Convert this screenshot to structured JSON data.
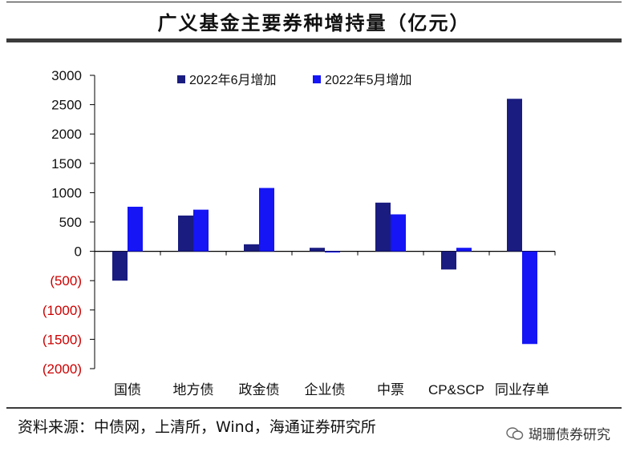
{
  "title": "广义基金主要券种增持量（亿元）",
  "source": "资料来源：中债网，上清所，Wind，海通证券研究所",
  "watermark": "瑚珊债券研究",
  "colors": {
    "series1": "#1a1c80",
    "series2": "#1515f5",
    "negative_tick": "#cc0000",
    "tick": "#111111"
  },
  "chart_data": {
    "type": "bar",
    "title": "广义基金主要券种增持量（亿元）",
    "categories": [
      "国债",
      "地方债",
      "政金债",
      "企业债",
      "中票",
      "CP&SCP",
      "同业存单"
    ],
    "series": [
      {
        "name": "2022年6月增加",
        "values": [
          -500,
          610,
          120,
          60,
          830,
          -310,
          2600
        ]
      },
      {
        "name": "2022年5月增加",
        "values": [
          760,
          710,
          1080,
          -20,
          630,
          60,
          -1580
        ]
      }
    ],
    "ylim": [
      -2000,
      3000
    ],
    "yticks": [
      3000,
      2500,
      2000,
      1500,
      1000,
      500,
      0,
      -500,
      -1000,
      -1500,
      -2000
    ],
    "ytick_labels": [
      "3000",
      "2500",
      "2000",
      "1500",
      "1000",
      "500",
      "0",
      "(500)",
      "(1000)",
      "(1500)",
      "(2000)"
    ],
    "legend_position": "top-center",
    "grid": false
  }
}
